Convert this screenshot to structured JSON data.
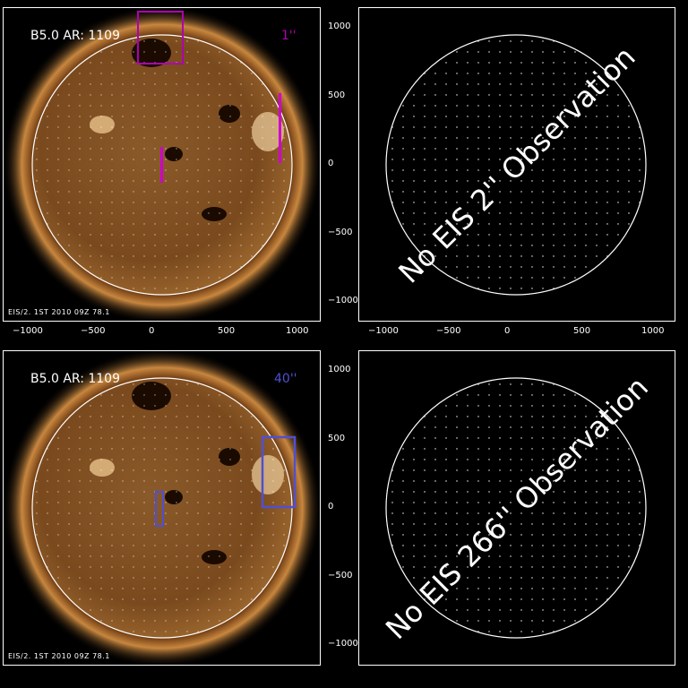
{
  "panels": {
    "top_left": {
      "label": "B5.0 AR: 1109",
      "corner_label": "1''",
      "corner_color": "#b000b0",
      "footer": "EIS/2. 1ST 2010 09Z 78.1"
    },
    "top_right": {
      "message": "No EIS 2'' Observation"
    },
    "bottom_left": {
      "label": "B5.0 AR: 1109",
      "corner_label": "40''",
      "corner_color": "#5050d0",
      "footer": "EIS/2. 1ST 2010 09Z 78.1"
    },
    "bottom_right": {
      "message": "No EIS 266'' Observation"
    }
  },
  "axes": {
    "x_ticks": [
      "−1000",
      "−500",
      "0",
      "500",
      "1000"
    ],
    "y_ticks": [
      "1000",
      "500",
      "0",
      "−500",
      "−1000"
    ]
  },
  "colors": {
    "disk_edge": "#ffffff",
    "corona": "#b86a2a"
  }
}
